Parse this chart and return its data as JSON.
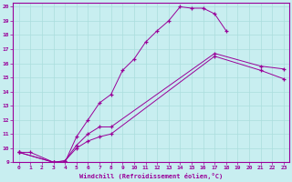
{
  "xlabel": "Windchill (Refroidissement éolien,°C)",
  "bg_color": "#c8eef0",
  "line_color": "#990099",
  "grid_color": "#aadddd",
  "xlim": [
    -0.5,
    23.5
  ],
  "ylim": [
    9,
    20.3
  ],
  "xticks": [
    0,
    1,
    2,
    3,
    4,
    5,
    6,
    7,
    8,
    9,
    10,
    11,
    12,
    13,
    14,
    15,
    16,
    17,
    18,
    19,
    20,
    21,
    22,
    23
  ],
  "yticks": [
    9,
    10,
    11,
    12,
    13,
    14,
    15,
    16,
    17,
    18,
    19,
    20
  ],
  "line1_x": [
    0,
    1,
    3,
    4,
    5,
    6,
    7,
    8,
    9,
    10,
    11,
    12,
    13,
    14,
    15,
    16,
    17,
    18
  ],
  "line1_y": [
    9.7,
    9.7,
    9.0,
    9.0,
    10.8,
    12.0,
    13.2,
    13.8,
    15.5,
    16.3,
    17.5,
    18.3,
    19.0,
    20.0,
    19.9,
    19.9,
    19.5,
    18.3
  ],
  "line2_x": [
    0,
    3,
    4,
    5,
    6,
    7,
    8,
    17,
    21,
    23
  ],
  "line2_y": [
    9.7,
    9.0,
    9.1,
    10.2,
    11.0,
    11.5,
    11.5,
    16.7,
    15.8,
    15.6
  ],
  "line3_x": [
    0,
    3,
    4,
    5,
    6,
    7,
    8,
    17,
    21,
    23
  ],
  "line3_y": [
    9.7,
    9.0,
    9.1,
    10.0,
    10.5,
    10.8,
    11.0,
    16.5,
    15.5,
    14.9
  ]
}
